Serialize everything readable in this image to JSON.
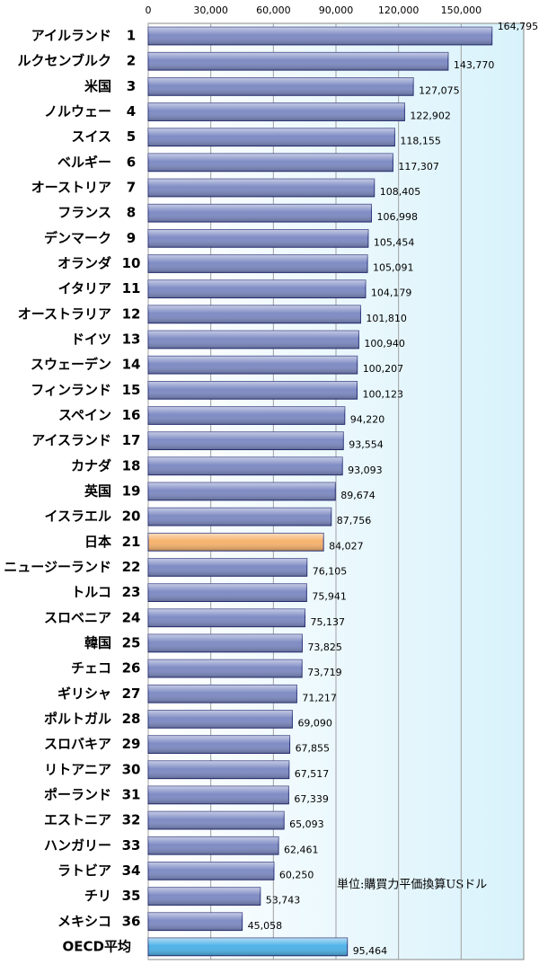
{
  "chart_data": {
    "type": "bar",
    "orientation": "horizontal",
    "annotation": "単位:購買力平価換算USドル",
    "categories": [
      "アイルランド",
      "ルクセンブルク",
      "米国",
      "ノルウェー",
      "スイス",
      "ベルギー",
      "オーストリア",
      "フランス",
      "デンマーク",
      "オランダ",
      "イタリア",
      "オーストラリア",
      "ドイツ",
      "スウェーデン",
      "フィンランド",
      "スペイン",
      "アイスランド",
      "カナダ",
      "英国",
      "イスラエル",
      "日本",
      "ニュージーランド",
      "トルコ",
      "スロベニア",
      "韓国",
      "チェコ",
      "ギリシャ",
      "ポルトガル",
      "スロバキア",
      "リトアニア",
      "ポーランド",
      "エストニア",
      "ハンガリー",
      "ラトビア",
      "チリ",
      "メキシコ",
      "OECD平均"
    ],
    "ranks": [
      1,
      2,
      3,
      4,
      5,
      6,
      7,
      8,
      9,
      10,
      11,
      12,
      13,
      14,
      15,
      16,
      17,
      18,
      19,
      20,
      21,
      22,
      23,
      24,
      25,
      26,
      27,
      28,
      29,
      30,
      31,
      32,
      33,
      34,
      35,
      36,
      null
    ],
    "values": [
      164795,
      143770,
      127075,
      122902,
      118155,
      117307,
      108405,
      106998,
      105454,
      105091,
      104179,
      101810,
      100940,
      100207,
      100123,
      94220,
      93554,
      93093,
      89674,
      87756,
      84027,
      76105,
      75941,
      75137,
      73825,
      73719,
      71217,
      69090,
      67855,
      67517,
      67339,
      65093,
      62461,
      60250,
      53743,
      45058,
      95464
    ],
    "value_labels": [
      "164,795",
      "143,770",
      "127,075",
      "122,902",
      "118,155",
      "117,307",
      "108,405",
      "106,998",
      "105,454",
      "105,091",
      "104,179",
      "101,810",
      "100,940",
      "100,207",
      "100,123",
      "94,220",
      "93,554",
      "93,093",
      "89,674",
      "87,756",
      "84,027",
      "76,105",
      "75,941",
      "75,137",
      "73,825",
      "73,719",
      "71,217",
      "69,090",
      "67,855",
      "67,517",
      "67,339",
      "65,093",
      "62,461",
      "60,250",
      "53,743",
      "45,058",
      "95,464"
    ],
    "colors": [
      "#7f8cc4",
      "#7f8cc4",
      "#7f8cc4",
      "#7f8cc4",
      "#7f8cc4",
      "#7f8cc4",
      "#7f8cc4",
      "#7f8cc4",
      "#7f8cc4",
      "#7f8cc4",
      "#7f8cc4",
      "#7f8cc4",
      "#7f8cc4",
      "#7f8cc4",
      "#7f8cc4",
      "#7f8cc4",
      "#7f8cc4",
      "#7f8cc4",
      "#7f8cc4",
      "#7f8cc4",
      "#f7b36e",
      "#7f8cc4",
      "#7f8cc4",
      "#7f8cc4",
      "#7f8cc4",
      "#7f8cc4",
      "#7f8cc4",
      "#7f8cc4",
      "#7f8cc4",
      "#7f8cc4",
      "#7f8cc4",
      "#7f8cc4",
      "#7f8cc4",
      "#7f8cc4",
      "#7f8cc4",
      "#7f8cc4",
      "#4fb3e8"
    ],
    "xlim": [
      0,
      180000
    ],
    "xticks": [
      0,
      {
        "value": 30000,
        "label": "30,000"
      },
      {
        "value": 60000,
        "label": "60,000"
      },
      {
        "value": 90000,
        "label": "90,000"
      },
      {
        "value": 120000,
        "label": "120,000"
      },
      {
        "value": 150000,
        "label": "150,000"
      }
    ],
    "grid": true
  }
}
